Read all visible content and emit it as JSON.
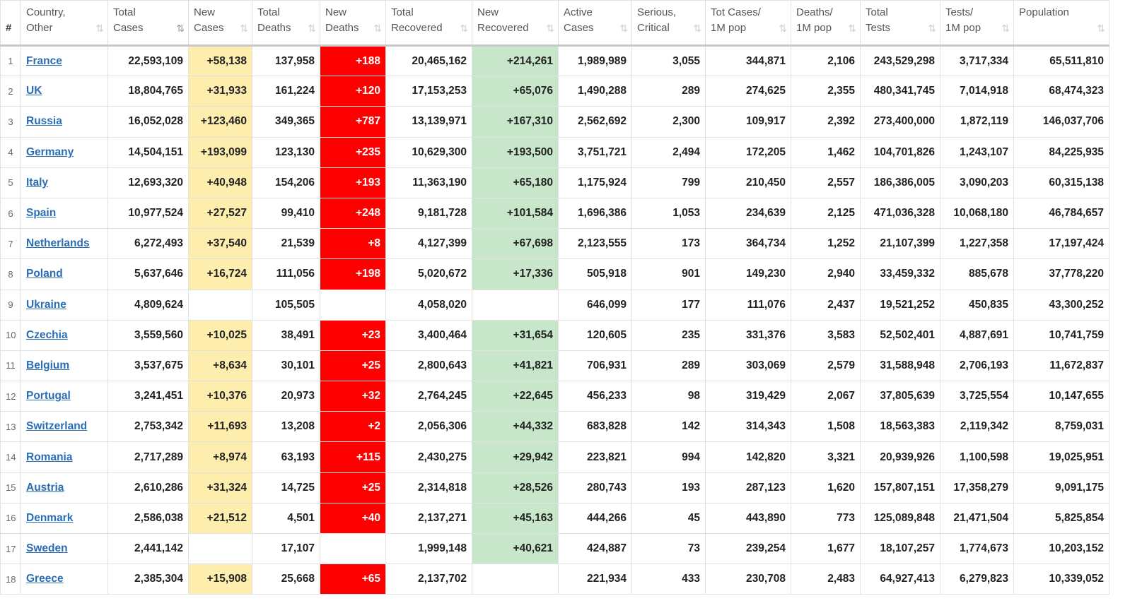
{
  "headers": [
    {
      "key": "num",
      "label": "#",
      "sort": ""
    },
    {
      "key": "country",
      "label": "Country,\nOther",
      "sort": "⇅"
    },
    {
      "key": "total_cases",
      "label": "Total\nCases",
      "sort": "⇅"
    },
    {
      "key": "new_cases",
      "label": "New\nCases",
      "sort": "⇅"
    },
    {
      "key": "total_deaths",
      "label": "Total\nDeaths",
      "sort": "⇅"
    },
    {
      "key": "new_deaths",
      "label": "New\nDeaths",
      "sort": "⇅"
    },
    {
      "key": "total_recovered",
      "label": "Total\nRecovered",
      "sort": "⇅"
    },
    {
      "key": "new_recovered",
      "label": "New\nRecovered",
      "sort": "⇅"
    },
    {
      "key": "active_cases",
      "label": "Active\nCases",
      "sort": "⇅"
    },
    {
      "key": "serious",
      "label": "Serious,\nCritical",
      "sort": "⇅"
    },
    {
      "key": "cases_per_m",
      "label": "Tot Cases/\n1M pop",
      "sort": "⇅"
    },
    {
      "key": "deaths_per_m",
      "label": "Deaths/\n1M pop",
      "sort": "⇅"
    },
    {
      "key": "total_tests",
      "label": "Total\nTests",
      "sort": "⇅"
    },
    {
      "key": "tests_per_m",
      "label": "Tests/\n1M pop",
      "sort": "⇅"
    },
    {
      "key": "population",
      "label": "Population",
      "sort": "⇅"
    }
  ],
  "colors": {
    "new_cases_bg": "#fdeeae",
    "new_deaths_bg": "#ff0000",
    "new_recovered_bg": "#c8e6c9",
    "link": "#2a6db5"
  },
  "rows": [
    {
      "num": "1",
      "country": "France",
      "total_cases": "22,593,109",
      "new_cases": "+58,138",
      "total_deaths": "137,958",
      "new_deaths": "+188",
      "total_recovered": "20,465,162",
      "new_recovered": "+214,261",
      "active_cases": "1,989,989",
      "serious": "3,055",
      "cases_per_m": "344,871",
      "deaths_per_m": "2,106",
      "total_tests": "243,529,298",
      "tests_per_m": "3,717,334",
      "population": "65,511,810"
    },
    {
      "num": "2",
      "country": "UK",
      "total_cases": "18,804,765",
      "new_cases": "+31,933",
      "total_deaths": "161,224",
      "new_deaths": "+120",
      "total_recovered": "17,153,253",
      "new_recovered": "+65,076",
      "active_cases": "1,490,288",
      "serious": "289",
      "cases_per_m": "274,625",
      "deaths_per_m": "2,355",
      "total_tests": "480,341,745",
      "tests_per_m": "7,014,918",
      "population": "68,474,323"
    },
    {
      "num": "3",
      "country": "Russia",
      "total_cases": "16,052,028",
      "new_cases": "+123,460",
      "total_deaths": "349,365",
      "new_deaths": "+787",
      "total_recovered": "13,139,971",
      "new_recovered": "+167,310",
      "active_cases": "2,562,692",
      "serious": "2,300",
      "cases_per_m": "109,917",
      "deaths_per_m": "2,392",
      "total_tests": "273,400,000",
      "tests_per_m": "1,872,119",
      "population": "146,037,706"
    },
    {
      "num": "4",
      "country": "Germany",
      "total_cases": "14,504,151",
      "new_cases": "+193,099",
      "total_deaths": "123,130",
      "new_deaths": "+235",
      "total_recovered": "10,629,300",
      "new_recovered": "+193,500",
      "active_cases": "3,751,721",
      "serious": "2,494",
      "cases_per_m": "172,205",
      "deaths_per_m": "1,462",
      "total_tests": "104,701,826",
      "tests_per_m": "1,243,107",
      "population": "84,225,935"
    },
    {
      "num": "5",
      "country": "Italy",
      "total_cases": "12,693,320",
      "new_cases": "+40,948",
      "total_deaths": "154,206",
      "new_deaths": "+193",
      "total_recovered": "11,363,190",
      "new_recovered": "+65,180",
      "active_cases": "1,175,924",
      "serious": "799",
      "cases_per_m": "210,450",
      "deaths_per_m": "2,557",
      "total_tests": "186,386,005",
      "tests_per_m": "3,090,203",
      "population": "60,315,138"
    },
    {
      "num": "6",
      "country": "Spain",
      "total_cases": "10,977,524",
      "new_cases": "+27,527",
      "total_deaths": "99,410",
      "new_deaths": "+248",
      "total_recovered": "9,181,728",
      "new_recovered": "+101,584",
      "active_cases": "1,696,386",
      "serious": "1,053",
      "cases_per_m": "234,639",
      "deaths_per_m": "2,125",
      "total_tests": "471,036,328",
      "tests_per_m": "10,068,180",
      "population": "46,784,657"
    },
    {
      "num": "7",
      "country": "Netherlands",
      "total_cases": "6,272,493",
      "new_cases": "+37,540",
      "total_deaths": "21,539",
      "new_deaths": "+8",
      "total_recovered": "4,127,399",
      "new_recovered": "+67,698",
      "active_cases": "2,123,555",
      "serious": "173",
      "cases_per_m": "364,734",
      "deaths_per_m": "1,252",
      "total_tests": "21,107,399",
      "tests_per_m": "1,227,358",
      "population": "17,197,424"
    },
    {
      "num": "8",
      "country": "Poland",
      "total_cases": "5,637,646",
      "new_cases": "+16,724",
      "total_deaths": "111,056",
      "new_deaths": "+198",
      "total_recovered": "5,020,672",
      "new_recovered": "+17,336",
      "active_cases": "505,918",
      "serious": "901",
      "cases_per_m": "149,230",
      "deaths_per_m": "2,940",
      "total_tests": "33,459,332",
      "tests_per_m": "885,678",
      "population": "37,778,220"
    },
    {
      "num": "9",
      "country": "Ukraine",
      "total_cases": "4,809,624",
      "new_cases": "",
      "total_deaths": "105,505",
      "new_deaths": "",
      "total_recovered": "4,058,020",
      "new_recovered": "",
      "active_cases": "646,099",
      "serious": "177",
      "cases_per_m": "111,076",
      "deaths_per_m": "2,437",
      "total_tests": "19,521,252",
      "tests_per_m": "450,835",
      "population": "43,300,252"
    },
    {
      "num": "10",
      "country": "Czechia",
      "total_cases": "3,559,560",
      "new_cases": "+10,025",
      "total_deaths": "38,491",
      "new_deaths": "+23",
      "total_recovered": "3,400,464",
      "new_recovered": "+31,654",
      "active_cases": "120,605",
      "serious": "235",
      "cases_per_m": "331,376",
      "deaths_per_m": "3,583",
      "total_tests": "52,502,401",
      "tests_per_m": "4,887,691",
      "population": "10,741,759"
    },
    {
      "num": "11",
      "country": "Belgium",
      "total_cases": "3,537,675",
      "new_cases": "+8,634",
      "total_deaths": "30,101",
      "new_deaths": "+25",
      "total_recovered": "2,800,643",
      "new_recovered": "+41,821",
      "active_cases": "706,931",
      "serious": "289",
      "cases_per_m": "303,069",
      "deaths_per_m": "2,579",
      "total_tests": "31,588,948",
      "tests_per_m": "2,706,193",
      "population": "11,672,837"
    },
    {
      "num": "12",
      "country": "Portugal",
      "total_cases": "3,241,451",
      "new_cases": "+10,376",
      "total_deaths": "20,973",
      "new_deaths": "+32",
      "total_recovered": "2,764,245",
      "new_recovered": "+22,645",
      "active_cases": "456,233",
      "serious": "98",
      "cases_per_m": "319,429",
      "deaths_per_m": "2,067",
      "total_tests": "37,805,639",
      "tests_per_m": "3,725,554",
      "population": "10,147,655"
    },
    {
      "num": "13",
      "country": "Switzerland",
      "total_cases": "2,753,342",
      "new_cases": "+11,693",
      "total_deaths": "13,208",
      "new_deaths": "+2",
      "total_recovered": "2,056,306",
      "new_recovered": "+44,332",
      "active_cases": "683,828",
      "serious": "142",
      "cases_per_m": "314,343",
      "deaths_per_m": "1,508",
      "total_tests": "18,563,383",
      "tests_per_m": "2,119,342",
      "population": "8,759,031"
    },
    {
      "num": "14",
      "country": "Romania",
      "total_cases": "2,717,289",
      "new_cases": "+8,974",
      "total_deaths": "63,193",
      "new_deaths": "+115",
      "total_recovered": "2,430,275",
      "new_recovered": "+29,942",
      "active_cases": "223,821",
      "serious": "994",
      "cases_per_m": "142,820",
      "deaths_per_m": "3,321",
      "total_tests": "20,939,926",
      "tests_per_m": "1,100,598",
      "population": "19,025,951"
    },
    {
      "num": "15",
      "country": "Austria",
      "total_cases": "2,610,286",
      "new_cases": "+31,324",
      "total_deaths": "14,725",
      "new_deaths": "+25",
      "total_recovered": "2,314,818",
      "new_recovered": "+28,526",
      "active_cases": "280,743",
      "serious": "193",
      "cases_per_m": "287,123",
      "deaths_per_m": "1,620",
      "total_tests": "157,807,151",
      "tests_per_m": "17,358,279",
      "population": "9,091,175"
    },
    {
      "num": "16",
      "country": "Denmark",
      "total_cases": "2,586,038",
      "new_cases": "+21,512",
      "total_deaths": "4,501",
      "new_deaths": "+40",
      "total_recovered": "2,137,271",
      "new_recovered": "+45,163",
      "active_cases": "444,266",
      "serious": "45",
      "cases_per_m": "443,890",
      "deaths_per_m": "773",
      "total_tests": "125,089,848",
      "tests_per_m": "21,471,504",
      "population": "5,825,854"
    },
    {
      "num": "17",
      "country": "Sweden",
      "total_cases": "2,441,142",
      "new_cases": "",
      "total_deaths": "17,107",
      "new_deaths": "",
      "total_recovered": "1,999,148",
      "new_recovered": "+40,621",
      "active_cases": "424,887",
      "serious": "73",
      "cases_per_m": "239,254",
      "deaths_per_m": "1,677",
      "total_tests": "18,107,257",
      "tests_per_m": "1,774,673",
      "population": "10,203,152"
    },
    {
      "num": "18",
      "country": "Greece",
      "total_cases": "2,385,304",
      "new_cases": "+15,908",
      "total_deaths": "25,668",
      "new_deaths": "+65",
      "total_recovered": "2,137,702",
      "new_recovered": "",
      "active_cases": "221,934",
      "serious": "433",
      "cases_per_m": "230,708",
      "deaths_per_m": "2,483",
      "total_tests": "64,927,413",
      "tests_per_m": "6,279,823",
      "population": "10,339,052"
    }
  ]
}
